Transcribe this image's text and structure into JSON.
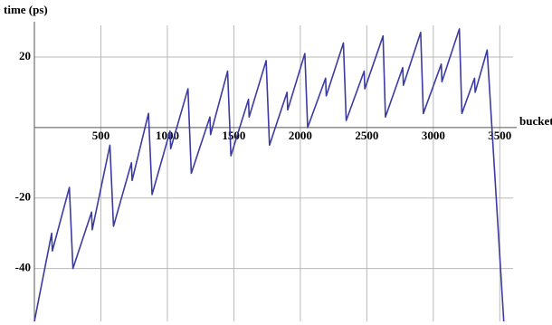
{
  "chart_data": {
    "type": "line",
    "xlabel": "bucket",
    "ylabel": "time (ps)",
    "x": [
      0,
      130,
      135,
      263,
      290,
      430,
      435,
      568,
      595,
      730,
      735,
      858,
      885,
      1020,
      1025,
      1155,
      1180,
      1320,
      1325,
      1453,
      1478,
      1610,
      1615,
      1743,
      1768,
      1900,
      1905,
      2034,
      2055,
      2190,
      2195,
      2324,
      2345,
      2480,
      2485,
      2622,
      2640,
      2770,
      2775,
      2905,
      2925,
      3060,
      3065,
      3196,
      3215,
      3310,
      3315,
      3405,
      3530
    ],
    "series": [
      {
        "color": "#3b3ba3",
        "values": [
          -55,
          -30,
          -35,
          -17,
          -40,
          -24,
          -29,
          -5,
          -28,
          -10,
          -15,
          4,
          -19,
          -1,
          -6,
          11,
          -13,
          3,
          -2,
          16,
          -8,
          8,
          3,
          19,
          -5,
          10,
          5,
          21,
          0,
          14,
          9,
          24,
          2,
          16,
          11,
          26,
          3,
          17,
          12,
          27,
          4,
          18,
          13,
          28,
          4,
          14,
          10,
          22,
          -55
        ]
      }
    ],
    "xlim": [
      0,
      3600
    ],
    "ylim": [
      -55,
      29
    ],
    "xticks": [
      500,
      1000,
      1500,
      2000,
      2500,
      3000,
      3500
    ],
    "yticks": [
      -40,
      -20,
      20
    ],
    "grid": true
  }
}
